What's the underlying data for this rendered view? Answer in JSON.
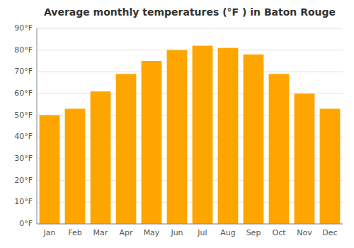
{
  "chart_data": {
    "type": "bar",
    "title": "Average monthly temperatures (°F ) in Baton Rouge",
    "categories": [
      "Jan",
      "Feb",
      "Mar",
      "Apr",
      "May",
      "Jun",
      "Jul",
      "Aug",
      "Sep",
      "Oct",
      "Nov",
      "Dec"
    ],
    "values": [
      50,
      53,
      61,
      69,
      75,
      80,
      82,
      81,
      78,
      69,
      60,
      53
    ],
    "color": "#FFA500",
    "ylim": [
      0,
      90
    ],
    "yticks": [
      {
        "value": 0,
        "label": "0°F"
      },
      {
        "value": 10,
        "label": "10°F"
      },
      {
        "value": 20,
        "label": "20°F"
      },
      {
        "value": 30,
        "label": "30°F"
      },
      {
        "value": 40,
        "label": "40°F"
      },
      {
        "value": 50,
        "label": "50°F"
      },
      {
        "value": 60,
        "label": "60°F"
      },
      {
        "value": 70,
        "label": "70°F"
      },
      {
        "value": 80,
        "label": "80°F"
      },
      {
        "value": 90,
        "label": "90°F"
      }
    ],
    "grid": true
  }
}
